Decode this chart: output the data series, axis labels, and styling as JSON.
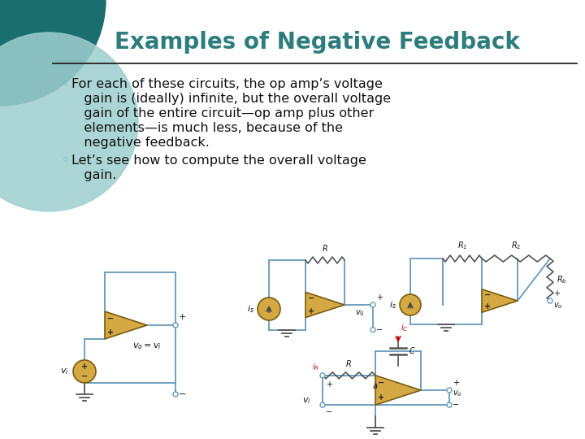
{
  "title": "Examples of Negative Feedback",
  "title_color": "#2e7d7d",
  "title_fontsize": 20,
  "bg_color": "#ffffff",
  "bullet_color": "#6aaccc",
  "text_color": "#111111",
  "text_fontsize": 11.5,
  "line_color": "#222222",
  "circuit_line_color": "#6699bb",
  "circuit_fill_color": "#d4a843",
  "decor_color1": "#1a6e6e",
  "decor_color2": "#9ecece",
  "bullet1_lines": [
    "For each of these circuits, the op amp’s voltage",
    "   gain is (ideally) infinite, but the overall voltage",
    "   gain of the entire circuit—op amp plus other",
    "   elements—is much less, because of the",
    "   negative feedback."
  ],
  "bullet2_lines": [
    "Let’s see how to compute the overall voltage",
    "   gain."
  ]
}
